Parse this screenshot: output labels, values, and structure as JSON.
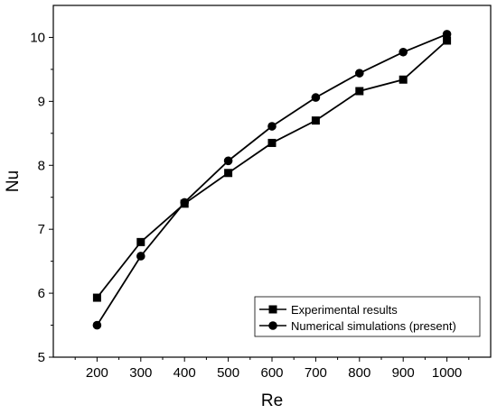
{
  "chart_data": {
    "type": "line",
    "xlabel": "Re",
    "ylabel": "Nu",
    "xlim": [
      100,
      1100
    ],
    "ylim": [
      5,
      10.5
    ],
    "x_ticks": [
      200,
      300,
      400,
      500,
      600,
      700,
      800,
      900,
      1000
    ],
    "y_ticks": [
      5,
      6,
      7,
      8,
      9,
      10
    ],
    "grid": false,
    "legend_position": "bottom-right",
    "x": [
      200,
      300,
      400,
      500,
      600,
      700,
      800,
      900,
      1000
    ],
    "series": [
      {
        "name": "Experimental results",
        "marker": "square",
        "color": "#000000",
        "values": [
          5.93,
          6.8,
          7.4,
          7.88,
          8.35,
          8.7,
          9.16,
          9.34,
          9.95
        ]
      },
      {
        "name": "Numerical simulations (present)",
        "marker": "circle",
        "color": "#000000",
        "values": [
          5.5,
          6.58,
          7.42,
          8.07,
          8.61,
          9.06,
          9.44,
          9.77,
          10.05
        ]
      }
    ]
  }
}
